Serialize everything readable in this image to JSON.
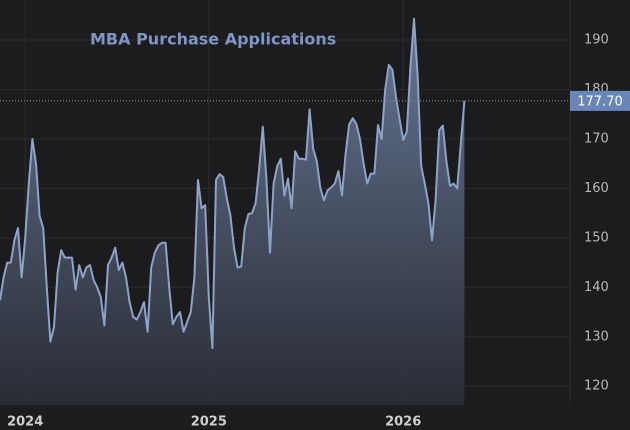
{
  "chart_data": {
    "type": "area",
    "title": "MBA Purchase Applications",
    "categories": [
      null,
      null,
      null,
      null,
      null,
      null,
      null,
      "2024",
      null,
      null,
      null,
      null,
      null,
      null,
      null,
      null,
      null,
      null,
      null,
      null,
      null,
      null,
      null,
      null,
      null,
      null,
      null,
      null,
      null,
      null,
      null,
      null,
      null,
      null,
      null,
      null,
      null,
      null,
      null,
      null,
      null,
      null,
      null,
      null,
      null,
      null,
      null,
      null,
      null,
      null,
      null,
      null,
      null,
      null,
      null,
      null,
      null,
      null,
      "2025",
      null,
      null,
      null,
      null,
      null,
      null,
      null,
      null,
      null,
      null,
      null,
      null,
      null,
      null,
      null,
      null,
      null,
      null,
      null,
      null,
      null,
      null,
      null,
      null,
      null,
      null,
      null,
      null,
      null,
      null,
      null,
      null,
      null,
      null,
      null,
      null,
      null,
      null,
      null,
      null,
      null,
      null,
      null,
      null,
      null,
      null,
      null,
      null,
      null,
      null,
      null,
      null,
      null,
      "2026",
      null,
      null,
      null,
      null,
      null,
      null,
      null,
      null,
      null,
      null,
      null,
      null,
      null,
      null,
      null,
      null,
      null
    ],
    "values": [
      137.4,
      142,
      145,
      145,
      149.5,
      152,
      142,
      150,
      161,
      170,
      165,
      154.5,
      152,
      140,
      129,
      132,
      143,
      147.5,
      146,
      146,
      146,
      139.5,
      144.5,
      142,
      144,
      144.5,
      141.5,
      140,
      138,
      132.3,
      144.5,
      146,
      148,
      143.5,
      145,
      142,
      137,
      134,
      133.5,
      135,
      137,
      131,
      144,
      147,
      148.5,
      149,
      149,
      140,
      132.5,
      134,
      135,
      131,
      133,
      135,
      142,
      161.7,
      156,
      156.6,
      138,
      127.7,
      161.7,
      162.9,
      162.3,
      158,
      154.5,
      148,
      144,
      144.2,
      152,
      154.8,
      155,
      157,
      164,
      172.5,
      162,
      147,
      161,
      164.5,
      166,
      158.5,
      162,
      156,
      167.5,
      166,
      166,
      165.8,
      176,
      168,
      165.5,
      160,
      157.6,
      159.6,
      160.2,
      161,
      163.5,
      158.6,
      167,
      173,
      174.2,
      173,
      170,
      165,
      161,
      163,
      163,
      172.8,
      170,
      180,
      185,
      184,
      178.5,
      174,
      169.8,
      171.5,
      184.5,
      194.3,
      183,
      164.5,
      161,
      157,
      149.5,
      157.7,
      171.8,
      172.7,
      165.5,
      160.5,
      161,
      160,
      169,
      177.7
    ],
    "value_labels": [
      null,
      null,
      null,
      null,
      null,
      null,
      null,
      null,
      null,
      null,
      null,
      null,
      null,
      null,
      null,
      null,
      null,
      null,
      null,
      null,
      null,
      null,
      null,
      null,
      null,
      null,
      null,
      null,
      null,
      null,
      null,
      null,
      null,
      null,
      null,
      null,
      null,
      null,
      null,
      null,
      null,
      null,
      null,
      null,
      null,
      null,
      null,
      null,
      null,
      null,
      null,
      null,
      null,
      null,
      null,
      null,
      null,
      null,
      null,
      null,
      null,
      null,
      null,
      null,
      null,
      null,
      null,
      null,
      null,
      null,
      null,
      null,
      null,
      null,
      null,
      null,
      null,
      null,
      null,
      null,
      null,
      null,
      null,
      null,
      null,
      null,
      null,
      null,
      null,
      null,
      null,
      null,
      null,
      null,
      null,
      null,
      null,
      null,
      null,
      null,
      null,
      null,
      null,
      null,
      null,
      null,
      null,
      null,
      null,
      null,
      null,
      null,
      null,
      null,
      null,
      null,
      null,
      null,
      null,
      null,
      null,
      null,
      null,
      null,
      null,
      null,
      null,
      null,
      null,
      "177.70"
    ],
    "color": "#8fa3c8",
    "ylim": [
      116.2,
      198.1
    ],
    "yticks": [
      120,
      130,
      140,
      150,
      160,
      170,
      180,
      190
    ],
    "grid": true
  }
}
